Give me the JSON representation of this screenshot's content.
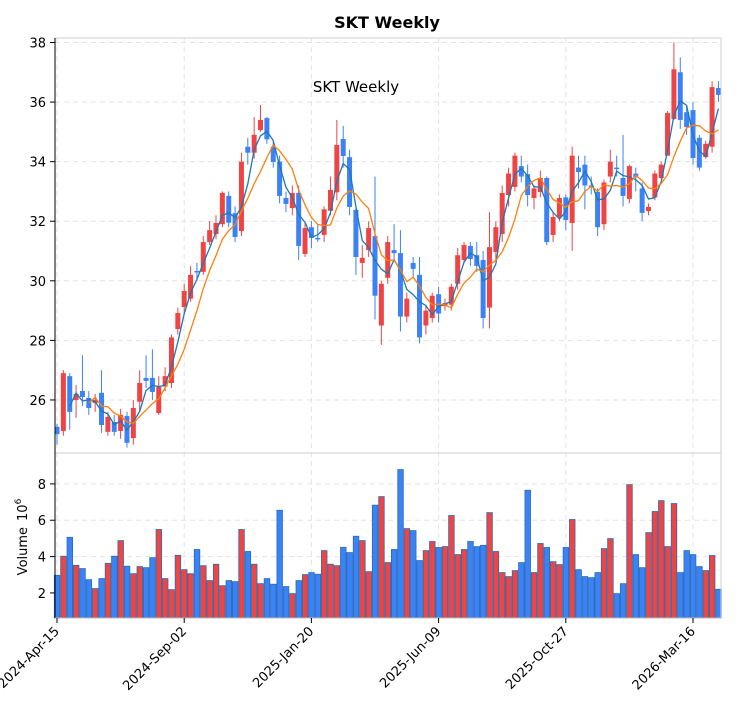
{
  "chart_data": {
    "type": "candlestick",
    "title": "SKT  Weekly",
    "inner_label": "SKT  Weekly",
    "frequency": "weekly",
    "start_date": "2024-04-15",
    "x_tick_labels": [
      "2024-Apr-15",
      "2024-Sep-02",
      "2025-Jan-20",
      "2025-Jun-09",
      "2025-Oct-27",
      "2026-Mar-16"
    ],
    "x_tick_index": [
      0,
      20,
      40,
      60,
      80,
      100
    ],
    "price_axis": {
      "ticks": [
        26,
        28,
        30,
        32,
        34,
        36,
        38
      ],
      "ylim": [
        24.22,
        38.15
      ],
      "grid": true
    },
    "volume_axis": {
      "label": "Volume",
      "label_exponent": "10",
      "label_power": "6",
      "ticks": [
        2,
        4,
        6,
        8
      ],
      "ylim": [
        0.62,
        9.7
      ],
      "unit": "millions"
    },
    "colors": {
      "up": "#ef4444",
      "down": "#3b82f6",
      "ma_short": "#1f77b4",
      "ma_long": "#ff7f0e",
      "volume_edge": "#2b6cb0"
    },
    "ma_windows": [
      3,
      6
    ],
    "open": [
      25.1,
      24.96,
      26.8,
      26.0,
      26.3,
      26.07,
      25.9,
      26.24,
      24.93,
      25.26,
      24.96,
      25.46,
      24.72,
      25.94,
      26.74,
      26.74,
      25.56,
      26.45,
      26.57,
      28.38,
      29.12,
      29.4,
      30.33,
      30.3,
      31.3,
      31.57,
      31.9,
      32.85,
      32.27,
      31.67,
      34.5,
      34.3,
      35.06,
      35.46,
      34.5,
      34.0,
      32.78,
      32.44,
      32.95,
      30.9,
      31.8,
      31.44,
      31.54,
      32.35,
      32.97,
      34.76,
      34.15,
      32.38,
      30.6,
      31.03,
      31.5,
      28.5,
      30.1,
      31.03,
      30.93,
      28.8,
      30.6,
      30.2,
      28.5,
      28.75,
      29.55,
      29.15,
      29.2,
      29.9,
      30.7,
      31.17,
      30.86,
      30.7,
      29.1,
      30.97,
      31.57,
      32.88,
      33.15,
      33.85,
      33.58,
      32.78,
      32.98,
      33.45,
      31.54,
      32.14,
      32.8,
      31.94,
      33.8,
      33.9,
      33.2,
      32.99,
      31.9,
      33.5,
      33.8,
      33.45,
      32.75,
      33.6,
      33.1,
      32.34,
      32.8,
      33.45,
      34.2,
      35.43,
      37.0,
      35.66,
      35.73,
      34.8,
      34.15,
      34.5,
      36.47
    ],
    "high": [
      25.2,
      27.0,
      26.9,
      26.5,
      27.5,
      26.3,
      26.2,
      27.0,
      25.6,
      25.5,
      25.7,
      25.6,
      26.0,
      27.0,
      27.5,
      27.7,
      26.8,
      27.1,
      28.2,
      29.1,
      29.9,
      30.5,
      30.6,
      31.5,
      32.0,
      32.2,
      33.0,
      33.0,
      32.5,
      34.3,
      34.8,
      35.5,
      35.9,
      35.5,
      34.7,
      34.2,
      33.0,
      33.2,
      33.2,
      32.0,
      32.0,
      31.9,
      32.5,
      33.5,
      35.4,
      35.2,
      34.4,
      32.5,
      31.2,
      32.0,
      33.5,
      30.0,
      31.5,
      31.9,
      31.7,
      29.6,
      30.8,
      30.8,
      29.2,
      29.6,
      29.8,
      29.4,
      29.9,
      31.1,
      31.3,
      31.3,
      31.3,
      31.0,
      32.3,
      32.0,
      33.2,
      33.8,
      34.3,
      34.2,
      33.9,
      33.2,
      33.7,
      33.5,
      32.3,
      32.9,
      32.9,
      34.5,
      34.2,
      34.2,
      33.5,
      33.1,
      33.4,
      34.4,
      34.2,
      34.9,
      33.9,
      33.8,
      33.3,
      32.6,
      33.7,
      34.0,
      35.7,
      38.0,
      37.5,
      35.9,
      36.0,
      34.9,
      34.7,
      36.7,
      36.7
    ],
    "low": [
      24.5,
      24.8,
      25.0,
      25.4,
      25.8,
      25.5,
      25.6,
      24.9,
      24.8,
      24.8,
      24.7,
      24.4,
      24.5,
      25.6,
      26.4,
      26.0,
      25.5,
      26.3,
      26.4,
      28.2,
      28.9,
      29.3,
      30.0,
      30.2,
      31.2,
      31.4,
      31.8,
      31.8,
      31.3,
      31.5,
      33.9,
      34.1,
      35.0,
      34.6,
      33.8,
      32.6,
      32.3,
      32.2,
      30.7,
      30.8,
      31.1,
      31.3,
      31.3,
      32.2,
      32.7,
      33.8,
      32.2,
      30.2,
      30.1,
      30.8,
      28.7,
      27.85,
      29.9,
      30.7,
      28.3,
      28.6,
      30.1,
      27.9,
      28.2,
      28.6,
      28.6,
      29.0,
      29.0,
      29.7,
      30.6,
      30.5,
      30.3,
      28.4,
      28.4,
      30.7,
      31.3,
      32.5,
      33.0,
      33.3,
      32.5,
      32.4,
      32.8,
      31.2,
      31.3,
      32.0,
      31.7,
      31.0,
      33.1,
      32.4,
      32.9,
      31.5,
      31.7,
      33.3,
      33.5,
      32.5,
      32.6,
      33.0,
      32.0,
      32.2,
      32.7,
      33.4,
      34.2,
      35.4,
      35.1,
      34.9,
      33.9,
      33.7,
      34.1,
      34.3,
      36.0
    ],
    "close": [
      24.85,
      26.9,
      25.6,
      26.2,
      26.1,
      25.73,
      26.0,
      25.16,
      25.43,
      24.93,
      25.5,
      24.56,
      25.73,
      26.57,
      26.64,
      26.27,
      26.44,
      26.8,
      28.1,
      28.92,
      29.66,
      30.2,
      30.28,
      31.3,
      31.7,
      31.94,
      32.95,
      31.95,
      31.47,
      34.0,
      34.3,
      34.9,
      35.4,
      34.75,
      33.99,
      32.85,
      32.58,
      32.95,
      31.17,
      31.77,
      31.44,
      31.42,
      32.4,
      33.05,
      34.56,
      34.19,
      32.48,
      30.8,
      30.77,
      31.77,
      29.5,
      29.9,
      31.3,
      30.93,
      28.8,
      29.4,
      30.4,
      28.1,
      29.0,
      29.5,
      28.9,
      29.25,
      29.8,
      30.86,
      31.2,
      30.73,
      30.5,
      28.75,
      31.13,
      31.8,
      32.95,
      33.6,
      34.2,
      33.5,
      32.88,
      33.1,
      33.45,
      31.3,
      32.14,
      32.78,
      32.04,
      34.2,
      33.65,
      33.2,
      33.15,
      31.8,
      33.3,
      34.0,
      33.75,
      32.85,
      33.85,
      33.48,
      32.28,
      32.48,
      33.6,
      33.9,
      35.63,
      37.1,
      35.4,
      35.16,
      34.12,
      33.8,
      34.6,
      36.5,
      36.24
    ],
    "volume": [
      2.97,
      4.02,
      5.06,
      3.52,
      3.34,
      2.73,
      2.24,
      2.79,
      3.63,
      4.02,
      4.88,
      3.47,
      3.06,
      3.45,
      3.39,
      3.94,
      5.49,
      2.79,
      2.18,
      4.07,
      3.28,
      3.06,
      4.39,
      3.5,
      2.68,
      3.58,
      2.4,
      2.68,
      2.62,
      5.49,
      4.28,
      3.58,
      2.51,
      2.79,
      2.48,
      6.55,
      2.35,
      1.96,
      2.68,
      3.01,
      3.12,
      3.03,
      4.33,
      3.58,
      3.5,
      4.51,
      4.22,
      5.12,
      4.88,
      3.17,
      6.83,
      7.3,
      3.67,
      4.39,
      8.79,
      5.54,
      5.43,
      3.78,
      4.33,
      4.83,
      4.5,
      4.55,
      6.26,
      4.11,
      4.39,
      4.83,
      4.55,
      4.62,
      6.42,
      4.28,
      3.12,
      2.9,
      3.23,
      3.67,
      7.65,
      3.12,
      4.72,
      4.5,
      3.72,
      3.56,
      4.5,
      6.04,
      3.28,
      2.9,
      2.84,
      3.12,
      4.44,
      4.99,
      1.96,
      2.51,
      7.96,
      4.11,
      3.39,
      5.32,
      6.48,
      7.08,
      4.55,
      6.92,
      3.12,
      4.33,
      4.11,
      3.45,
      3.23,
      4.06,
      2.2
    ]
  }
}
